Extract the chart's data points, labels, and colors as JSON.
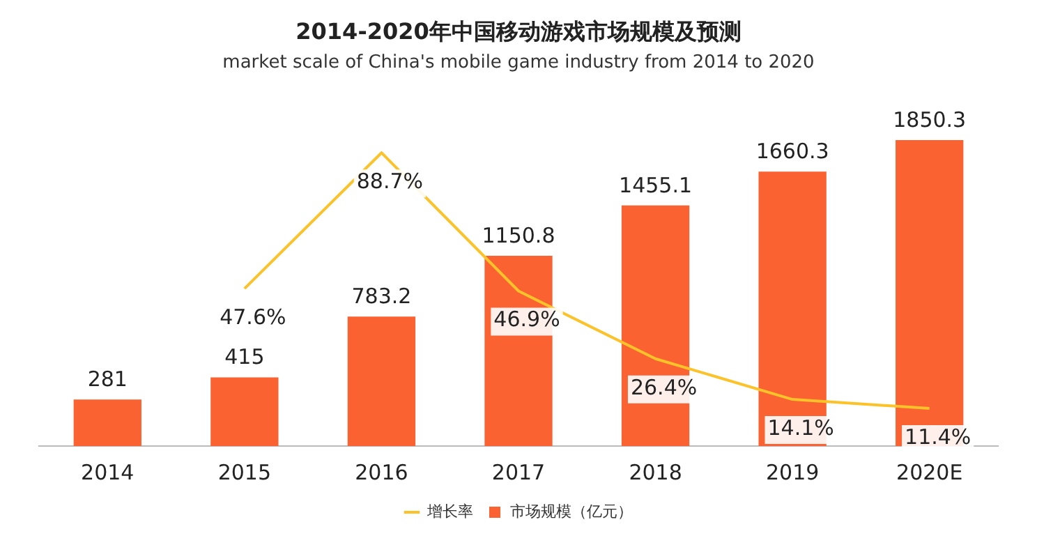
{
  "chart_data": {
    "type": "bar",
    "title": "2014-2020年中国移动游戏市场规模及预测",
    "subtitle": "market scale of China's mobile game industry from 2014 to 2020",
    "categories": [
      "2014",
      "2015",
      "2016",
      "2017",
      "2018",
      "2019",
      "2020E"
    ],
    "series": [
      {
        "name": "市场规模（亿元）",
        "color": "#fa6232",
        "values": [
          281,
          415,
          783.2,
          1150.8,
          1455.1,
          1660.3,
          1850.3
        ]
      },
      {
        "name": "增长率",
        "type": "line",
        "axis": "y2",
        "color": "#fcc22a",
        "values": [
          null,
          47.6,
          88.7,
          46.9,
          26.4,
          14.1,
          11.4
        ],
        "value_labels": [
          null,
          "47.6%",
          "88.7%",
          "46.9%",
          "26.4%",
          "14.1%",
          "11.4%"
        ]
      }
    ],
    "data_labels": true,
    "legend": "bottom",
    "grid": false,
    "tick_labels": "x",
    "marker": "none"
  }
}
